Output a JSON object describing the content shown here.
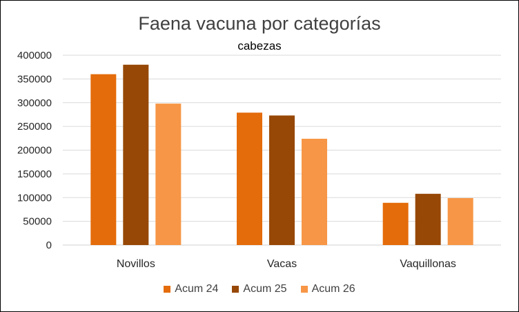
{
  "chart_data": {
    "type": "bar",
    "title": "Faena vacuna por categorías",
    "subtitle": "cabezas",
    "categories": [
      "Novillos",
      "Vacas",
      "Vaquillonas"
    ],
    "series": [
      {
        "name": "Acum 24",
        "color": "#e46c0a",
        "values": [
          360000,
          279000,
          89000
        ]
      },
      {
        "name": "Acum 25",
        "color": "#974806",
        "values": [
          380000,
          273000,
          108000
        ]
      },
      {
        "name": "Acum 26",
        "color": "#f79646",
        "values": [
          298000,
          224000,
          99000
        ]
      }
    ],
    "ylim": [
      0,
      400000
    ],
    "yticks": [
      0,
      50000,
      100000,
      150000,
      200000,
      250000,
      300000,
      350000,
      400000
    ],
    "grid": true,
    "legend": "bottom"
  }
}
